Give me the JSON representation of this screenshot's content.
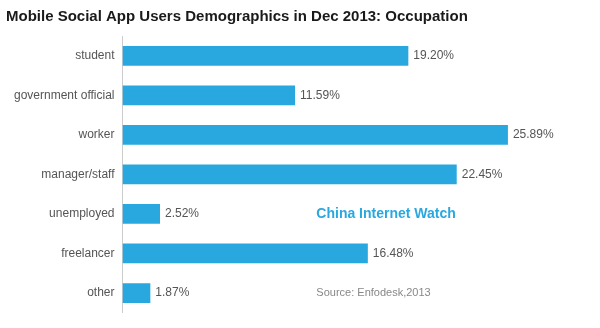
{
  "chart_data": {
    "type": "bar",
    "orientation": "horizontal",
    "title": "Mobile Social App Users Demographics in Dec 2013: Occupation",
    "categories": [
      "other",
      "freelancer",
      "unemployed",
      "manager/staff",
      "worker",
      "government official",
      "student"
    ],
    "values": [
      1.87,
      16.48,
      2.52,
      22.45,
      25.89,
      11.59,
      19.2
    ],
    "value_labels": [
      "1.87%",
      "16.48%",
      "2.52%",
      "22.45%",
      "25.89%",
      "11.59%",
      "19.20%"
    ],
    "color": "#29a8e0",
    "xlim": [
      0,
      31
    ],
    "data_labels": true,
    "tick_labels": "y",
    "grid": false,
    "annotations": [
      "China Internet Watch",
      "Source: Enfodesk,2013"
    ]
  }
}
